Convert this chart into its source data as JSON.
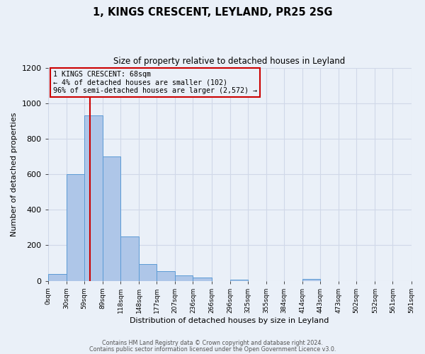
{
  "title": "1, KINGS CRESCENT, LEYLAND, PR25 2SG",
  "subtitle": "Size of property relative to detached houses in Leyland",
  "xlabel": "Distribution of detached houses by size in Leyland",
  "ylabel": "Number of detached properties",
  "bin_edges": [
    0,
    30,
    59,
    89,
    118,
    148,
    177,
    207,
    236,
    266,
    296,
    325,
    355,
    384,
    414,
    443,
    473,
    502,
    532,
    561,
    591
  ],
  "bin_counts": [
    38,
    600,
    930,
    700,
    248,
    95,
    55,
    30,
    18,
    0,
    5,
    0,
    0,
    0,
    10,
    0,
    0,
    0,
    0,
    0
  ],
  "tick_labels": [
    "0sqm",
    "30sqm",
    "59sqm",
    "89sqm",
    "118sqm",
    "148sqm",
    "177sqm",
    "207sqm",
    "236sqm",
    "266sqm",
    "296sqm",
    "325sqm",
    "355sqm",
    "384sqm",
    "414sqm",
    "443sqm",
    "473sqm",
    "502sqm",
    "532sqm",
    "561sqm",
    "591sqm"
  ],
  "bar_color": "#aec6e8",
  "bar_edge_color": "#5b9bd5",
  "vline_x": 68,
  "vline_color": "#cc0000",
  "annotation_line1": "1 KINGS CRESCENT: 68sqm",
  "annotation_line2": "← 4% of detached houses are smaller (102)",
  "annotation_line3": "96% of semi-detached houses are larger (2,572) →",
  "annotation_box_color": "#cc0000",
  "ylim": [
    0,
    1200
  ],
  "yticks": [
    0,
    200,
    400,
    600,
    800,
    1000,
    1200
  ],
  "grid_color": "#d0d8e8",
  "background_color": "#eaf0f8",
  "footer_line1": "Contains HM Land Registry data © Crown copyright and database right 2024.",
  "footer_line2": "Contains public sector information licensed under the Open Government Licence v3.0."
}
